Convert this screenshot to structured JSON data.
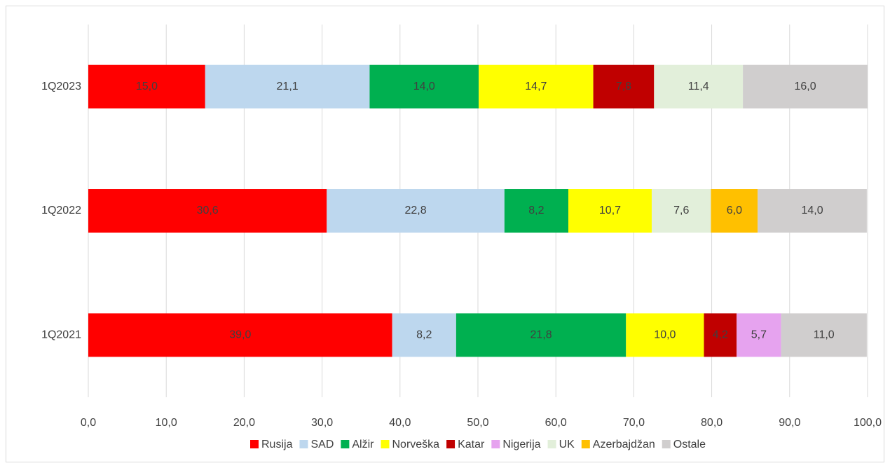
{
  "chart_data": {
    "type": "stacked-bar-horizontal",
    "categories": [
      "1Q2023",
      "1Q2022",
      "1Q2021"
    ],
    "series": [
      {
        "name": "Rusija",
        "color": "#ff0000",
        "values": [
          15.0,
          30.6,
          39.0
        ],
        "value_labels": [
          "15,0",
          "30,6",
          "39,0"
        ]
      },
      {
        "name": "SAD",
        "color": "#bdd7ee",
        "values": [
          21.1,
          22.8,
          8.2
        ],
        "value_labels": [
          "21,1",
          "22,8",
          "8,2"
        ]
      },
      {
        "name": "Alžir",
        "color": "#00b050",
        "values": [
          14.0,
          8.2,
          21.8
        ],
        "value_labels": [
          "14,0",
          "8,2",
          "21,8"
        ]
      },
      {
        "name": "Norveška",
        "color": "#ffff00",
        "values": [
          14.7,
          10.7,
          10.0
        ],
        "value_labels": [
          "14,7",
          "10,7",
          "10,0"
        ]
      },
      {
        "name": "Katar",
        "color": "#c00000",
        "values": [
          7.8,
          null,
          4.2
        ],
        "value_labels": [
          "7,8",
          null,
          "4,2"
        ]
      },
      {
        "name": "Nigerija",
        "color": "#e6a3ef",
        "values": [
          null,
          null,
          5.7
        ],
        "value_labels": [
          null,
          null,
          "5,7"
        ]
      },
      {
        "name": "UK",
        "color": "#e2efda",
        "values": [
          11.4,
          7.6,
          null
        ],
        "value_labels": [
          "11,4",
          "7,6",
          null
        ]
      },
      {
        "name": "Azerbajdžan",
        "color": "#ffc000",
        "values": [
          null,
          6.0,
          null
        ],
        "value_labels": [
          null,
          "6,0",
          null
        ]
      },
      {
        "name": "Ostale",
        "color": "#d0cece",
        "values": [
          16.0,
          14.0,
          11.0
        ],
        "value_labels": [
          "16,0",
          "14,0",
          "11,0"
        ]
      }
    ],
    "xlim": [
      0,
      100
    ],
    "xticks": [
      {
        "value": 0,
        "label": "0,0"
      },
      {
        "value": 10,
        "label": "10,0"
      },
      {
        "value": 20,
        "label": "20,0"
      },
      {
        "value": 30,
        "label": "30,0"
      },
      {
        "value": 40,
        "label": "40,0"
      },
      {
        "value": 50,
        "label": "50,0"
      },
      {
        "value": 60,
        "label": "60,0"
      },
      {
        "value": 70,
        "label": "70,0"
      },
      {
        "value": 80,
        "label": "80,0"
      },
      {
        "value": 90,
        "label": "90,0"
      },
      {
        "value": 100,
        "label": "100,0"
      }
    ],
    "grid": true,
    "legend": "bottom"
  }
}
